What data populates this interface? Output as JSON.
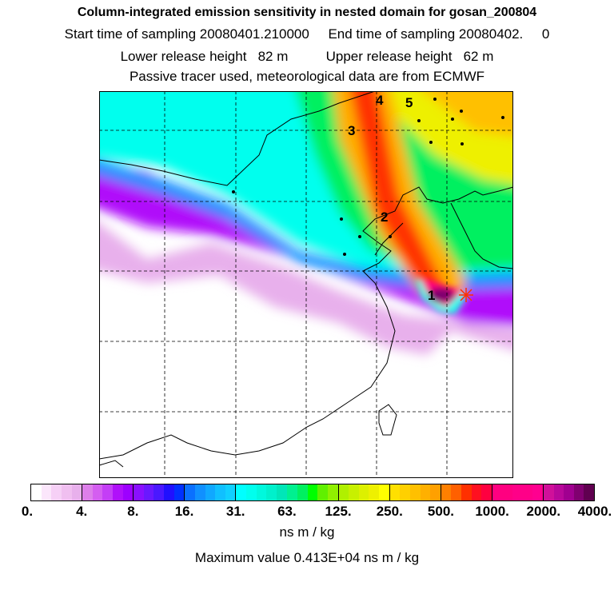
{
  "header": {
    "title": "Column-integrated emission sensitivity in nested domain for gosan_200804",
    "line2": "Start time of sampling 20080401.210000     End time of sampling 20080402.     0",
    "line3": "Lower release height   82 m          Upper release height   62 m",
    "line4": "Passive tracer used, meteorological data are from ECMWF"
  },
  "map": {
    "trajectory_labels": [
      "1",
      "2",
      "3",
      "4",
      "5"
    ]
  },
  "colorbar": {
    "tick_labels": [
      "0.",
      "4.",
      "8.",
      "16.",
      "31.",
      "63.",
      "125.",
      "250.",
      "500.",
      "1000.",
      "2000.",
      "4000."
    ],
    "segment_colors": [
      [
        "#ffffff",
        "#fbe6fb",
        "#f6d0f6",
        "#f0bff0",
        "#e8b0ec"
      ],
      [
        "#dd7fea",
        "#d45ef0",
        "#c43ef6",
        "#b010fa",
        "#9d00ff"
      ],
      [
        "#8a10ff",
        "#6a18ff",
        "#4a18ff",
        "#2010ff",
        "#0030ff"
      ],
      [
        "#0a70ff",
        "#1090ff",
        "#10a8ff",
        "#10c0ff",
        "#10d0ff"
      ],
      [
        "#00ffff",
        "#00ffee",
        "#00f8dd",
        "#00f0cc",
        "#00e6b8"
      ],
      [
        "#00f090",
        "#00f060",
        "#00ff00",
        "#60f000",
        "#90f000"
      ],
      [
        "#b0f000",
        "#c8f000",
        "#ddf000",
        "#eef000",
        "#ffff00"
      ],
      [
        "#ffe000",
        "#ffd000",
        "#ffc000",
        "#ffb000",
        "#ffa000"
      ],
      [
        "#ff8000",
        "#ff6000",
        "#ff3000",
        "#ff1020",
        "#ff0040"
      ],
      [
        "#ff0080",
        "#ff0080",
        "#ff0088",
        "#ff0088",
        "#ff0090"
      ],
      [
        "#d0109a",
        "#b8089a",
        "#a00090",
        "#800070",
        "#600050"
      ]
    ],
    "unit": "ns m / kg",
    "max_value": "Maximum value  0.413E+04 ns m / kg"
  }
}
